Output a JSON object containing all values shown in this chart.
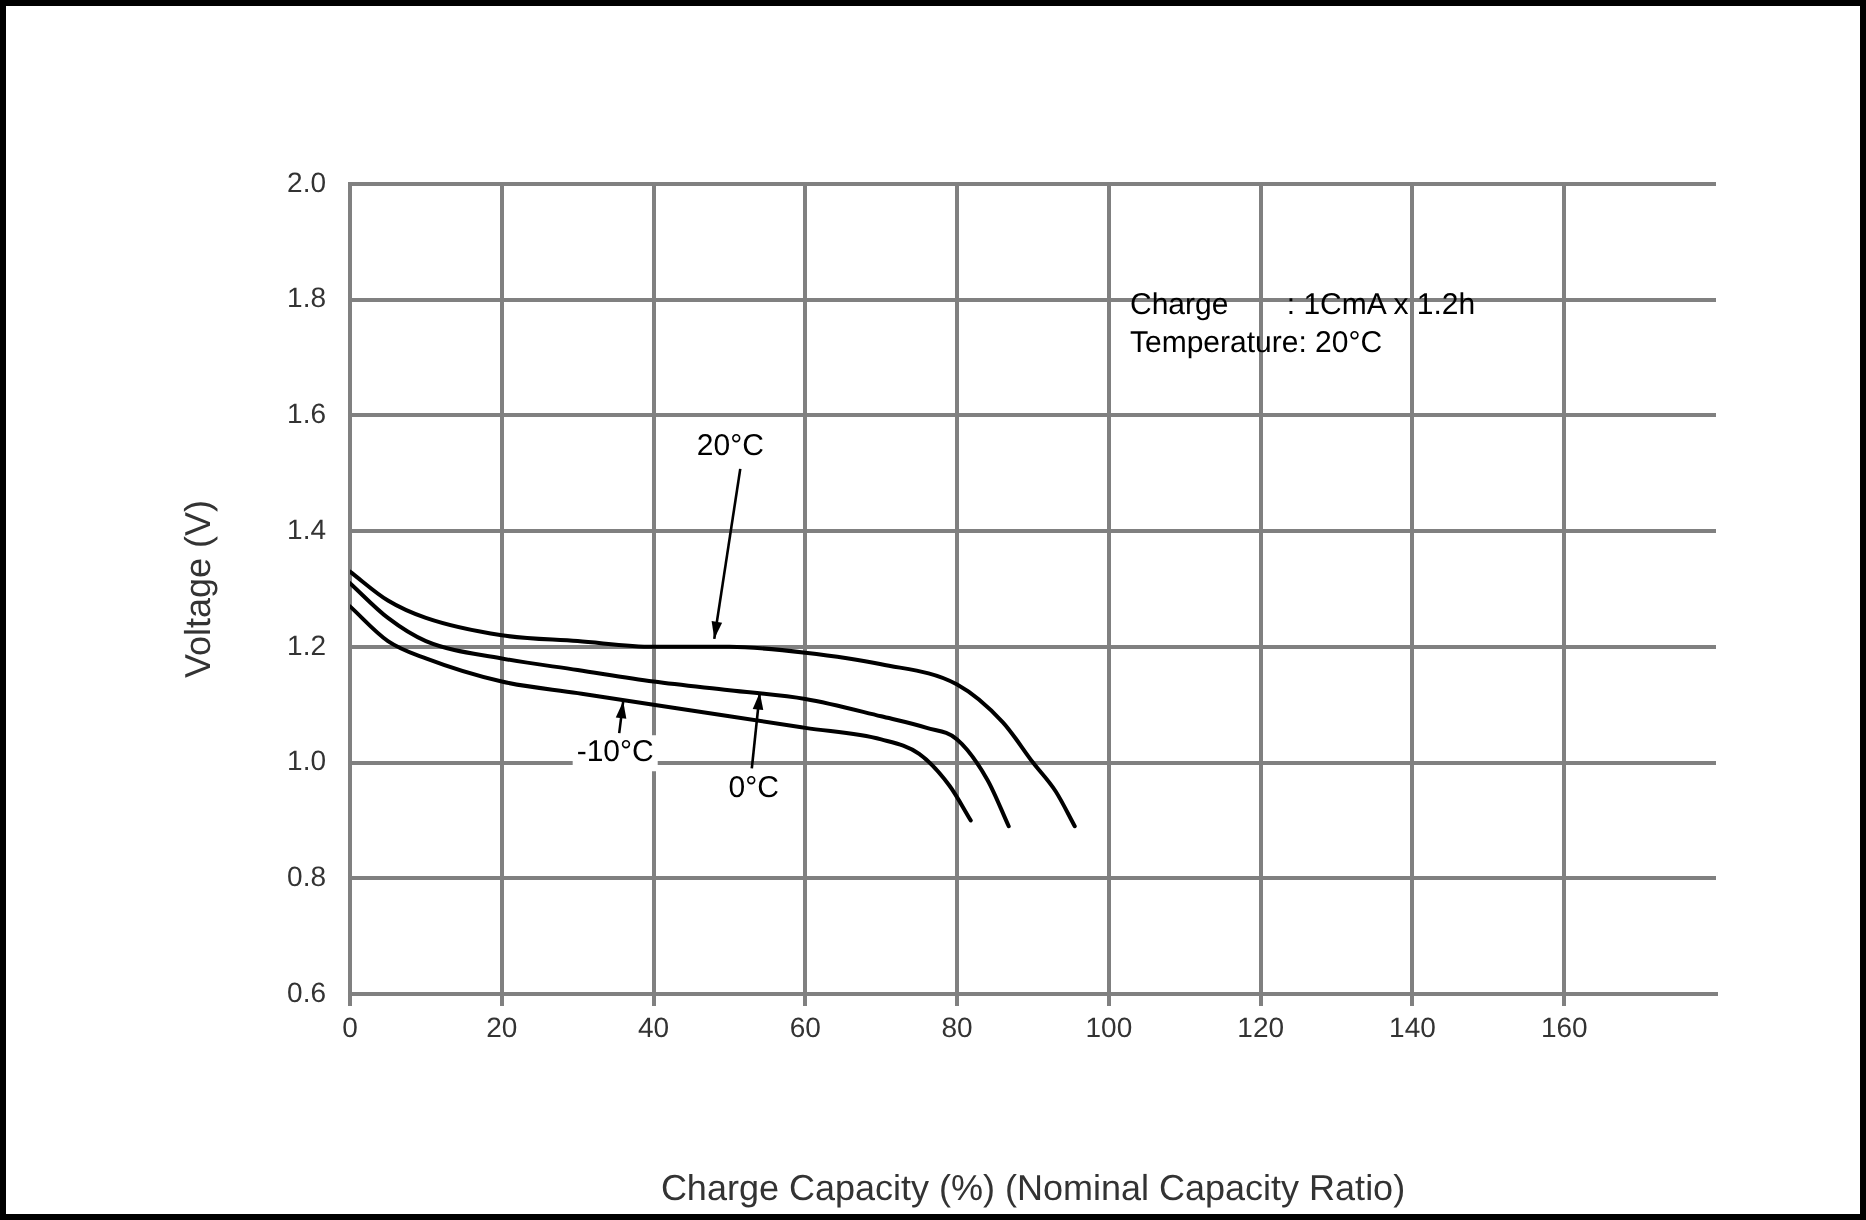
{
  "chart_data": {
    "type": "line",
    "xlabel": "Charge Capacity (%) (Nominal Capacity Ratio)",
    "ylabel": "Voltage (V)",
    "xlim": [
      0,
      180
    ],
    "xticks": [
      0,
      20,
      40,
      60,
      80,
      100,
      120,
      140,
      160
    ],
    "ylim": [
      0.6,
      2.0
    ],
    "yticks": [
      0.6,
      0.8,
      {
        "value": 1,
        "label": "1.0"
      },
      1.2,
      1.4,
      1.6,
      1.8,
      {
        "value": 2,
        "label": "2.0"
      }
    ],
    "grid": true,
    "legend": false,
    "marker": "none",
    "line_style": "solid",
    "series": [
      {
        "color": "#000000",
        "x": [
          0,
          5,
          10,
          20,
          30,
          40,
          50,
          60,
          70,
          80,
          86,
          90,
          93,
          95.5
        ],
        "values": [
          1.33,
          1.28,
          1.25,
          1.22,
          1.21,
          1.2,
          1.2,
          1.19,
          1.17,
          1.135,
          1.07,
          1.0,
          0.95,
          0.89
        ]
      },
      {
        "color": "#000000",
        "x": [
          0,
          5,
          10,
          20,
          30,
          40,
          50,
          60,
          70,
          76,
          80,
          84,
          86.8
        ],
        "values": [
          1.31,
          1.25,
          1.21,
          1.18,
          1.16,
          1.14,
          1.125,
          1.11,
          1.08,
          1.06,
          1.04,
          0.97,
          0.89
        ]
      },
      {
        "color": "#000000",
        "x": [
          0,
          5,
          10,
          20,
          30,
          40,
          50,
          60,
          70,
          75,
          79,
          81.8
        ],
        "values": [
          1.27,
          1.21,
          1.18,
          1.14,
          1.12,
          1.1,
          1.08,
          1.06,
          1.04,
          1.015,
          0.96,
          0.9
        ]
      }
    ],
    "annotations": [
      {
        "text": "20°C",
        "x": 48,
        "y": 1.2
      },
      {
        "text": "0°C",
        "x": 54,
        "y": 1.135
      },
      {
        "text": "-10°C",
        "x": 36,
        "y": 1.12
      },
      "Charge       : 1CmA x 1.2h",
      "Temperature: 20°C"
    ]
  }
}
